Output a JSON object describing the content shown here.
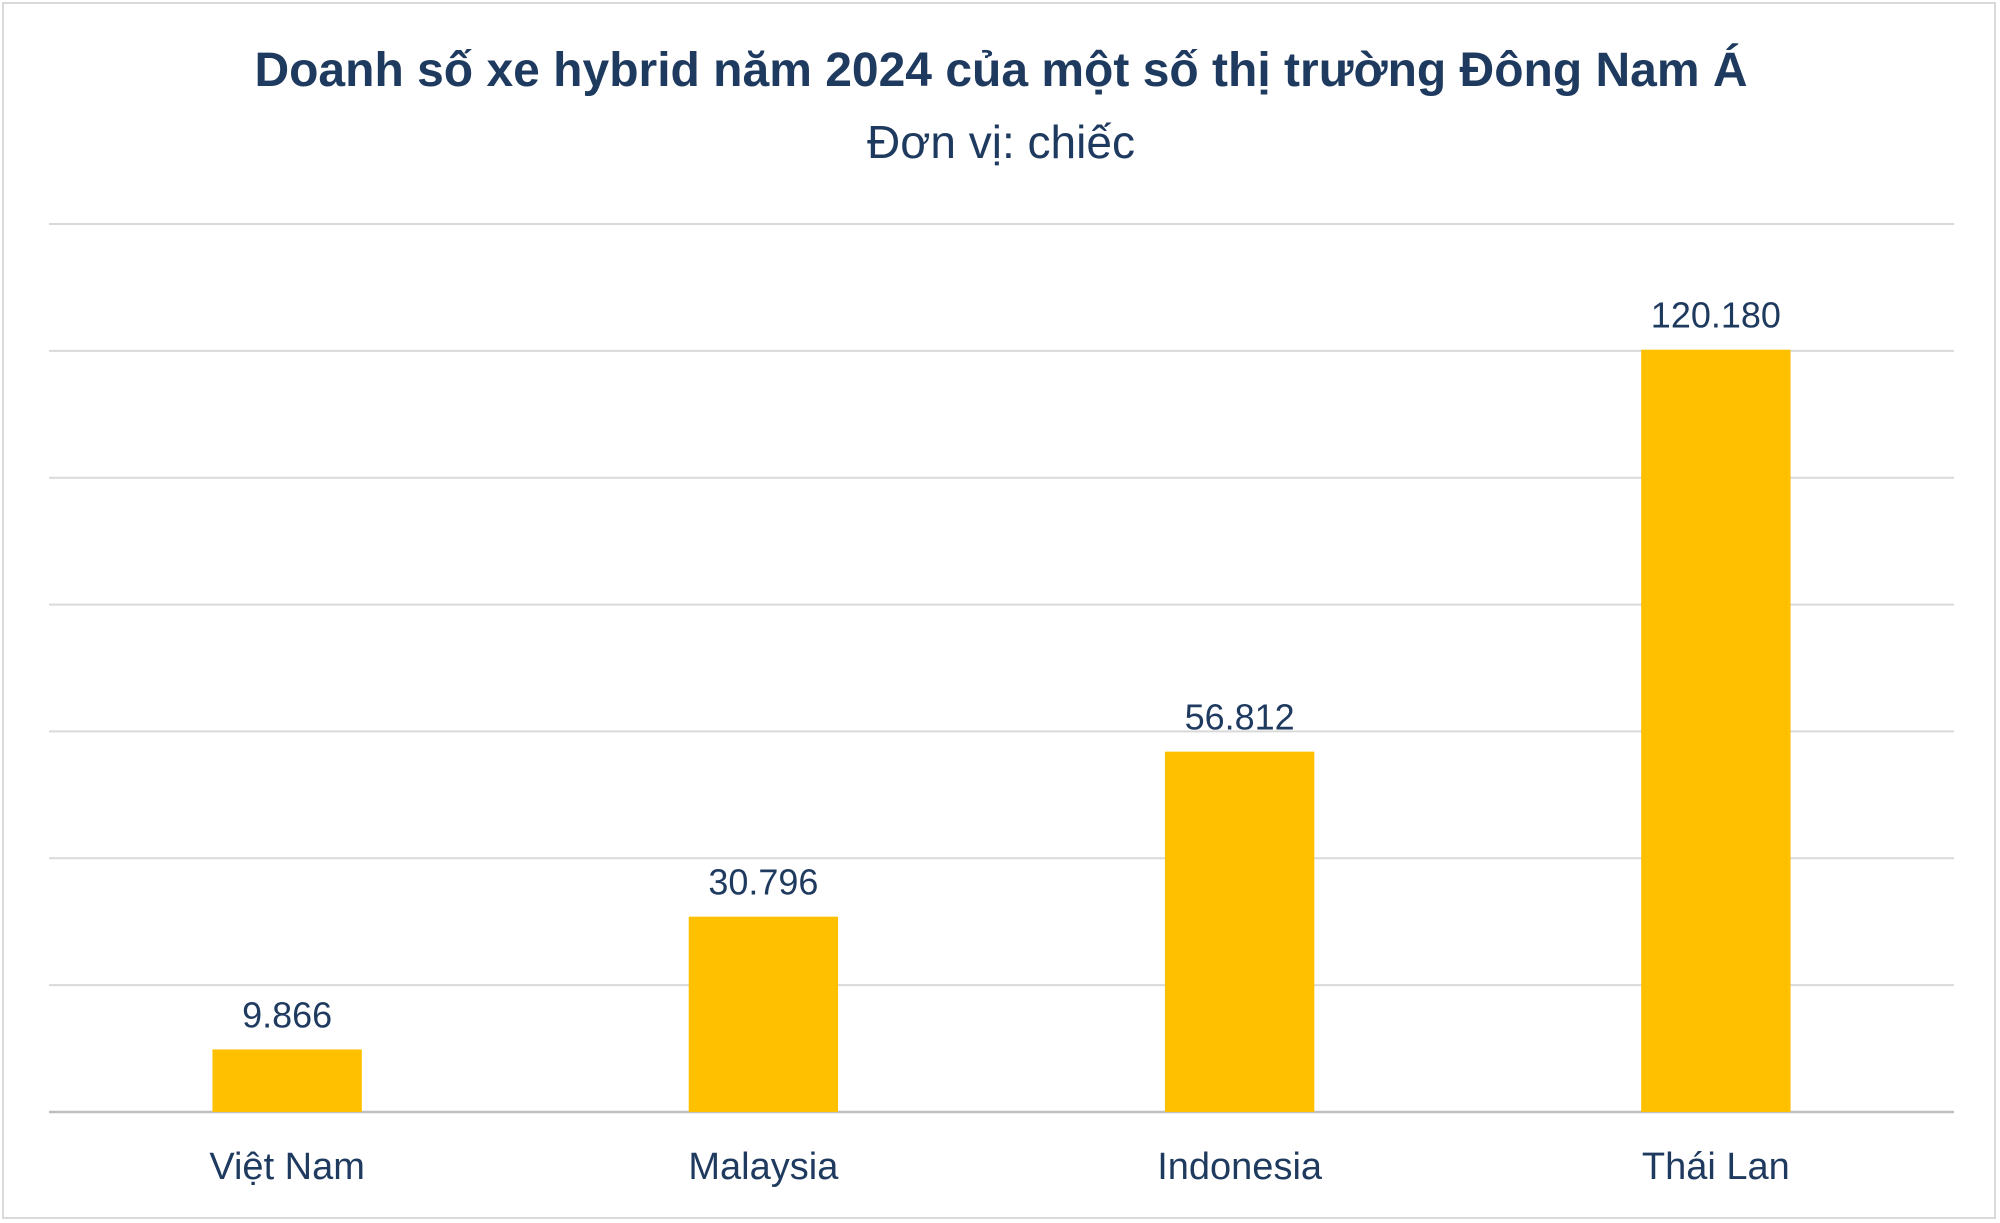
{
  "chart_data": {
    "type": "bar",
    "title": "Doanh số xe hybrid năm 2024 của một số thị trường Đông Nam Á",
    "subtitle": "Đơn vị: chiếc",
    "categories": [
      "Việt Nam",
      "Malaysia",
      "Indonesia",
      "Thái Lan"
    ],
    "values": [
      9866,
      30796,
      56812,
      120180
    ],
    "data_labels": [
      "9.866",
      "30.796",
      "56.812",
      "120.180"
    ],
    "ylim": [
      0,
      140000
    ],
    "ytick_step": 20000,
    "grid": true,
    "legend": "none",
    "xlabel": "",
    "ylabel": "",
    "colors": {
      "bar": "#ffc000",
      "text": "#1f3a5f"
    }
  }
}
